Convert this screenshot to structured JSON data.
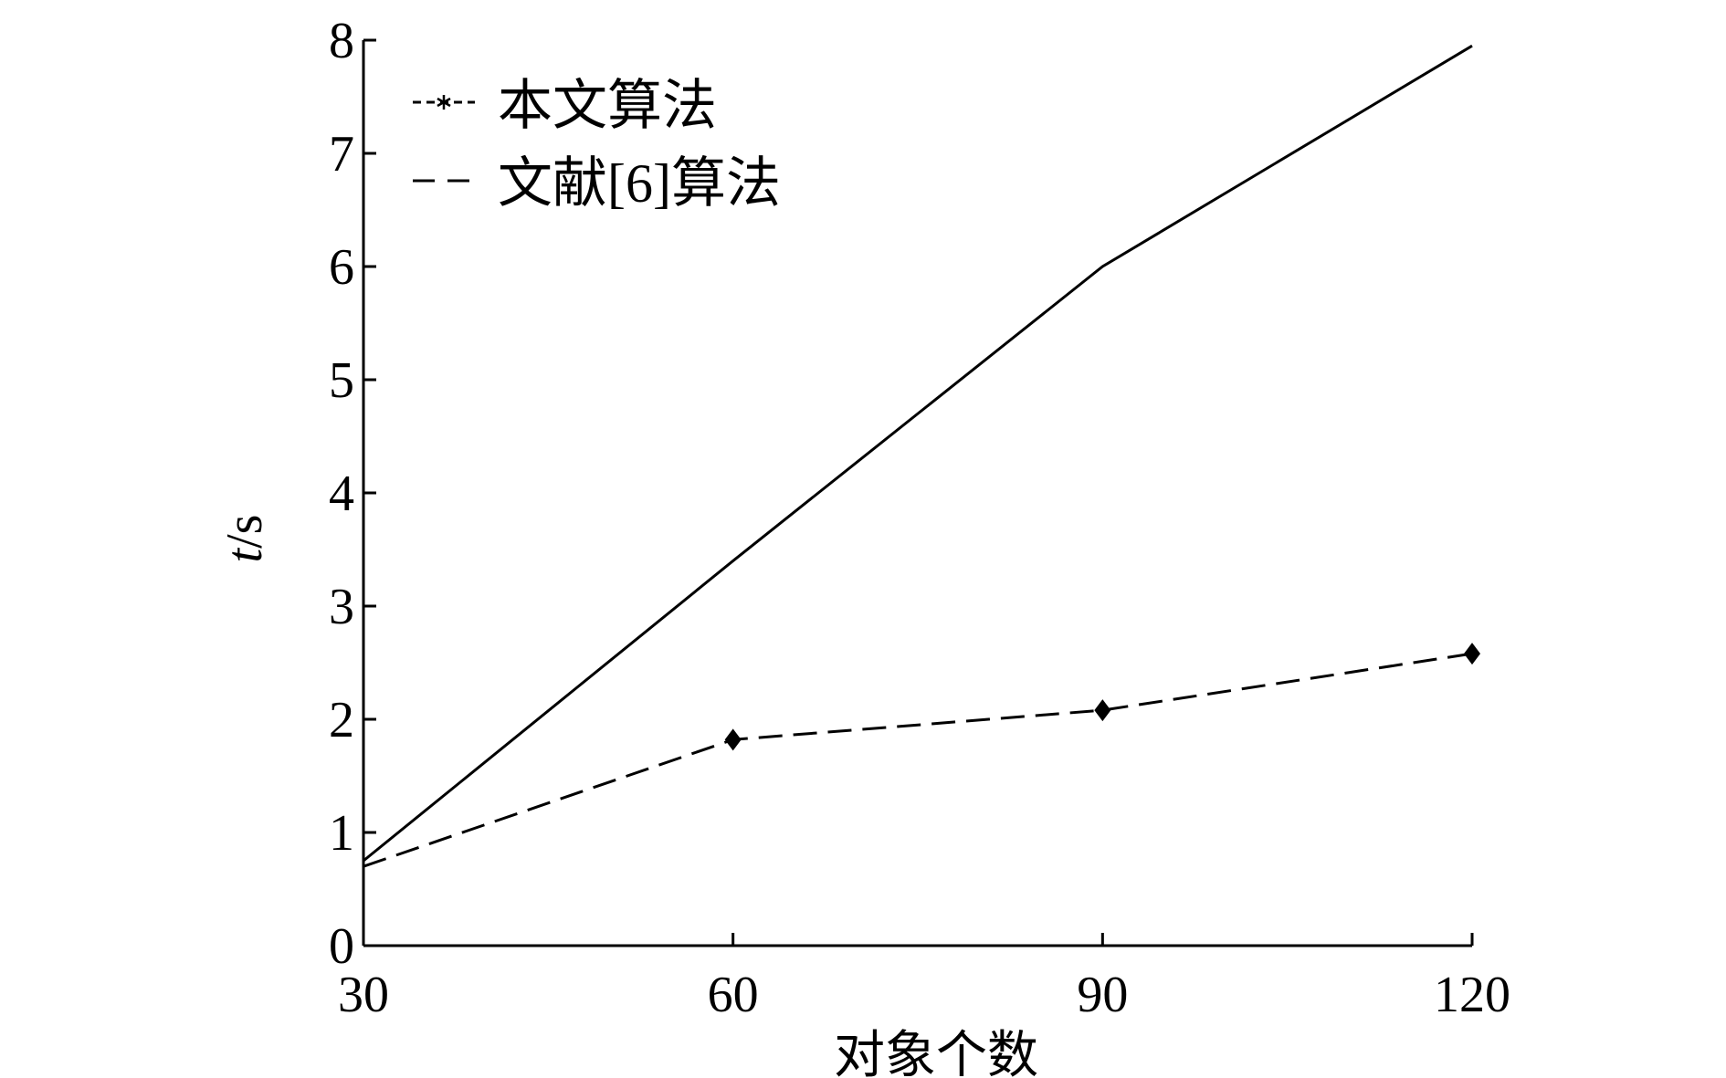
{
  "chart_data": {
    "type": "line",
    "x": [
      30,
      60,
      90,
      120
    ],
    "xlabel": "对象个数",
    "ylabel_italic": "t",
    "ylabel_unit": "/s",
    "xlim": [
      30,
      120
    ],
    "ylim": [
      0,
      8
    ],
    "xticks": [
      "30",
      "60",
      "90",
      "120"
    ],
    "yticks": [
      "0",
      "1",
      "2",
      "3",
      "4",
      "5",
      "6",
      "7",
      "8"
    ],
    "grid": false,
    "legend_position": "top-left",
    "series": [
      {
        "name": "本文算法",
        "style": "dashed-marker",
        "marker_on_legend": "*",
        "values": [
          0.7,
          1.82,
          2.08,
          2.58
        ]
      },
      {
        "name": "文献[6]算法",
        "style": "solid",
        "values": [
          0.75,
          3.4,
          6.0,
          7.95
        ]
      }
    ],
    "colors": {
      "line": "#000000",
      "background": "#ffffff"
    }
  }
}
